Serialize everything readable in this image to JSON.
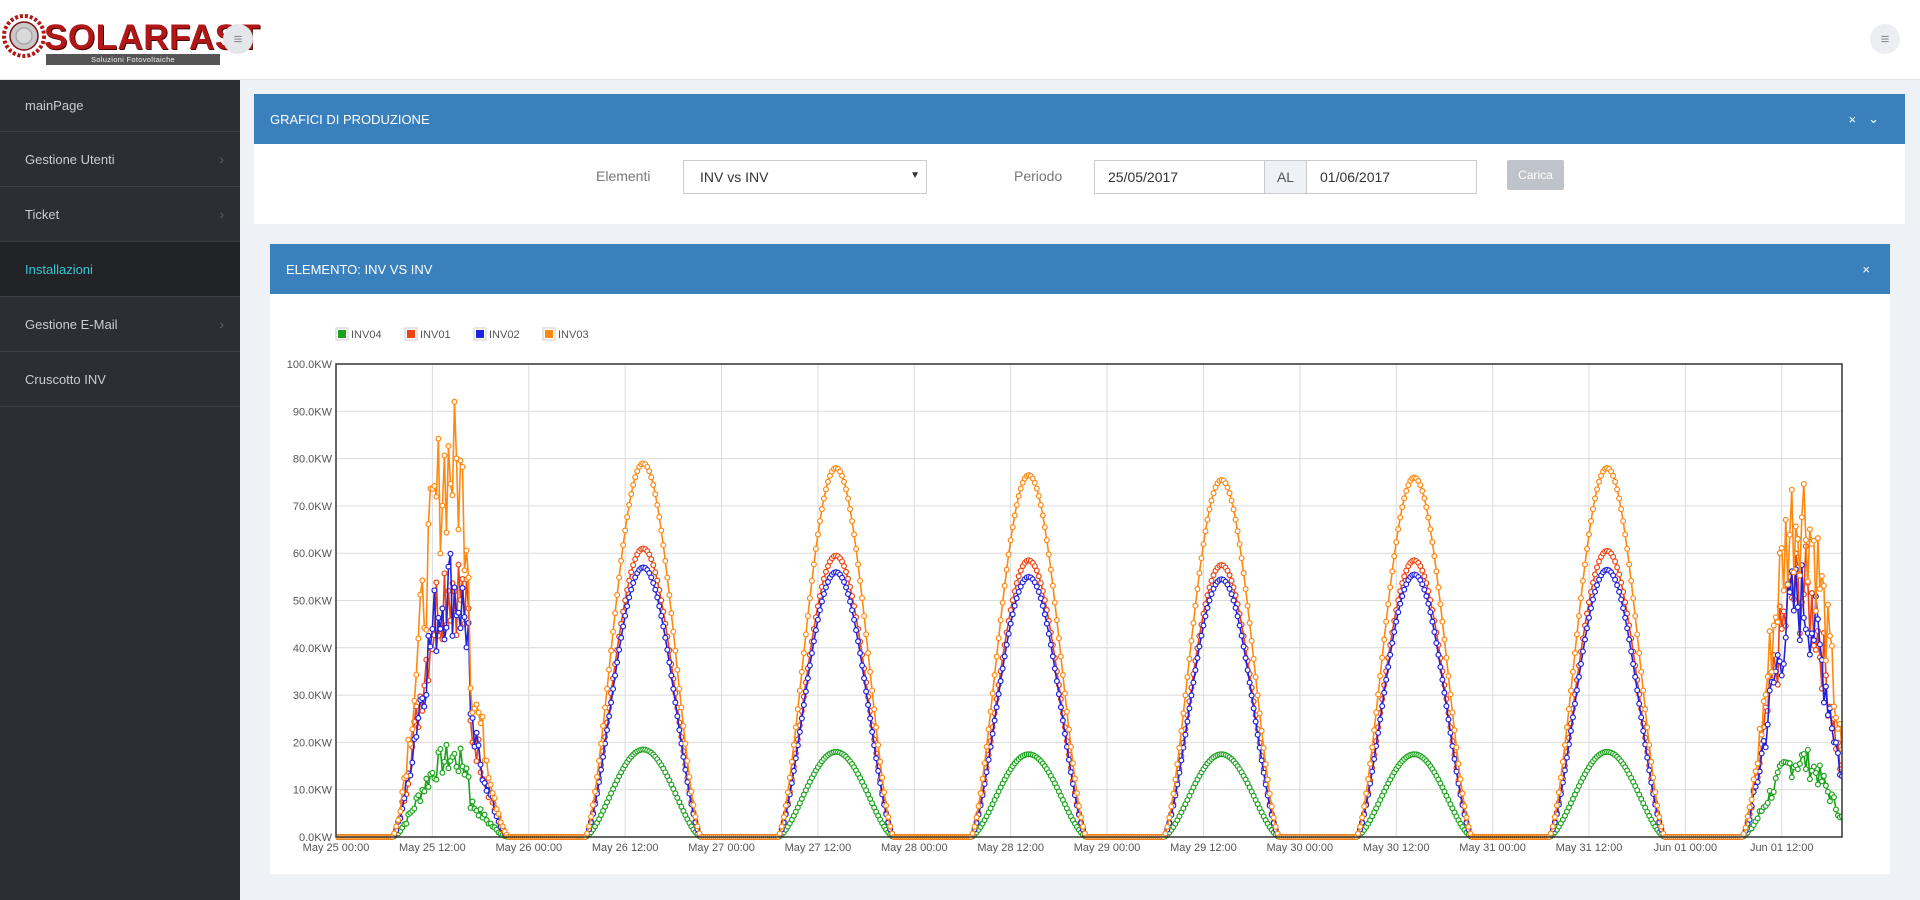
{
  "header": {
    "logo_text": "SOLARFAST",
    "logo_subtitle": "Soluzioni Fotovoltaiche",
    "menu_icon": "hamburger-icon"
  },
  "sidebar": {
    "items": [
      {
        "label": "mainPage",
        "arrow": false,
        "active": false
      },
      {
        "label": "Gestione Utenti",
        "arrow": true,
        "active": false
      },
      {
        "label": "Ticket",
        "arrow": true,
        "active": false
      },
      {
        "label": "Installazioni",
        "arrow": false,
        "active": true
      },
      {
        "label": "Gestione E-Mail",
        "arrow": true,
        "active": false
      },
      {
        "label": "Cruscotto INV",
        "arrow": false,
        "active": false
      }
    ],
    "active_color": "#36c6d3"
  },
  "production_panel": {
    "title": "GRAFICI DI PRODUZIONE",
    "close_glyph": "×",
    "collapse_glyph": "⌄",
    "elementi_label": "Elementi",
    "elementi_value": "INV vs INV",
    "periodo_label": "Periodo",
    "date_from": "25/05/2017",
    "al_label": "AL",
    "date_to": "01/06/2017",
    "load_button": "Carica"
  },
  "element_panel": {
    "title": "ELEMENTO: INV VS INV",
    "close_glyph": "×"
  },
  "chart_data": {
    "type": "line",
    "ylim": [
      0,
      100
    ],
    "yunit": "KW",
    "y_ticks": [
      "0.0KW",
      "10.0KW",
      "20.0KW",
      "30.0KW",
      "40.0KW",
      "50.0KW",
      "60.0KW",
      "70.0KW",
      "80.0KW",
      "90.0KW",
      "100.0KW"
    ],
    "x_ticks": [
      "May 25 00:00",
      "May 25 12:00",
      "May 26 00:00",
      "May 26 12:00",
      "May 27 00:00",
      "May 27 12:00",
      "May 28 00:00",
      "May 28 12:00",
      "May 29 00:00",
      "May 29 12:00",
      "May 30 00:00",
      "May 30 12:00",
      "May 31 00:00",
      "May 31 12:00",
      "Jun 01 00:00",
      "Jun 01 12:00"
    ],
    "x_range_hours": [
      0,
      187.5
    ],
    "legend_position": "top-left",
    "grid": true,
    "series": [
      {
        "name": "INV04",
        "color": "#1aa31a",
        "daily_peak_kw": [
          19,
          18.5,
          18,
          17.5,
          17.5,
          17.5,
          18,
          18.5
        ]
      },
      {
        "name": "INV01",
        "color": "#ee4411",
        "daily_peak_kw": [
          62,
          61,
          59.5,
          58.5,
          57.5,
          58.5,
          60.5,
          60
        ]
      },
      {
        "name": "INV02",
        "color": "#2222dd",
        "daily_peak_kw": [
          60,
          57,
          56,
          55,
          54.5,
          55.5,
          56.5,
          57
        ]
      },
      {
        "name": "INV03",
        "color": "#ff8811",
        "daily_peak_kw": [
          90,
          79,
          78,
          76.5,
          75.5,
          76,
          78,
          79
        ]
      }
    ]
  }
}
